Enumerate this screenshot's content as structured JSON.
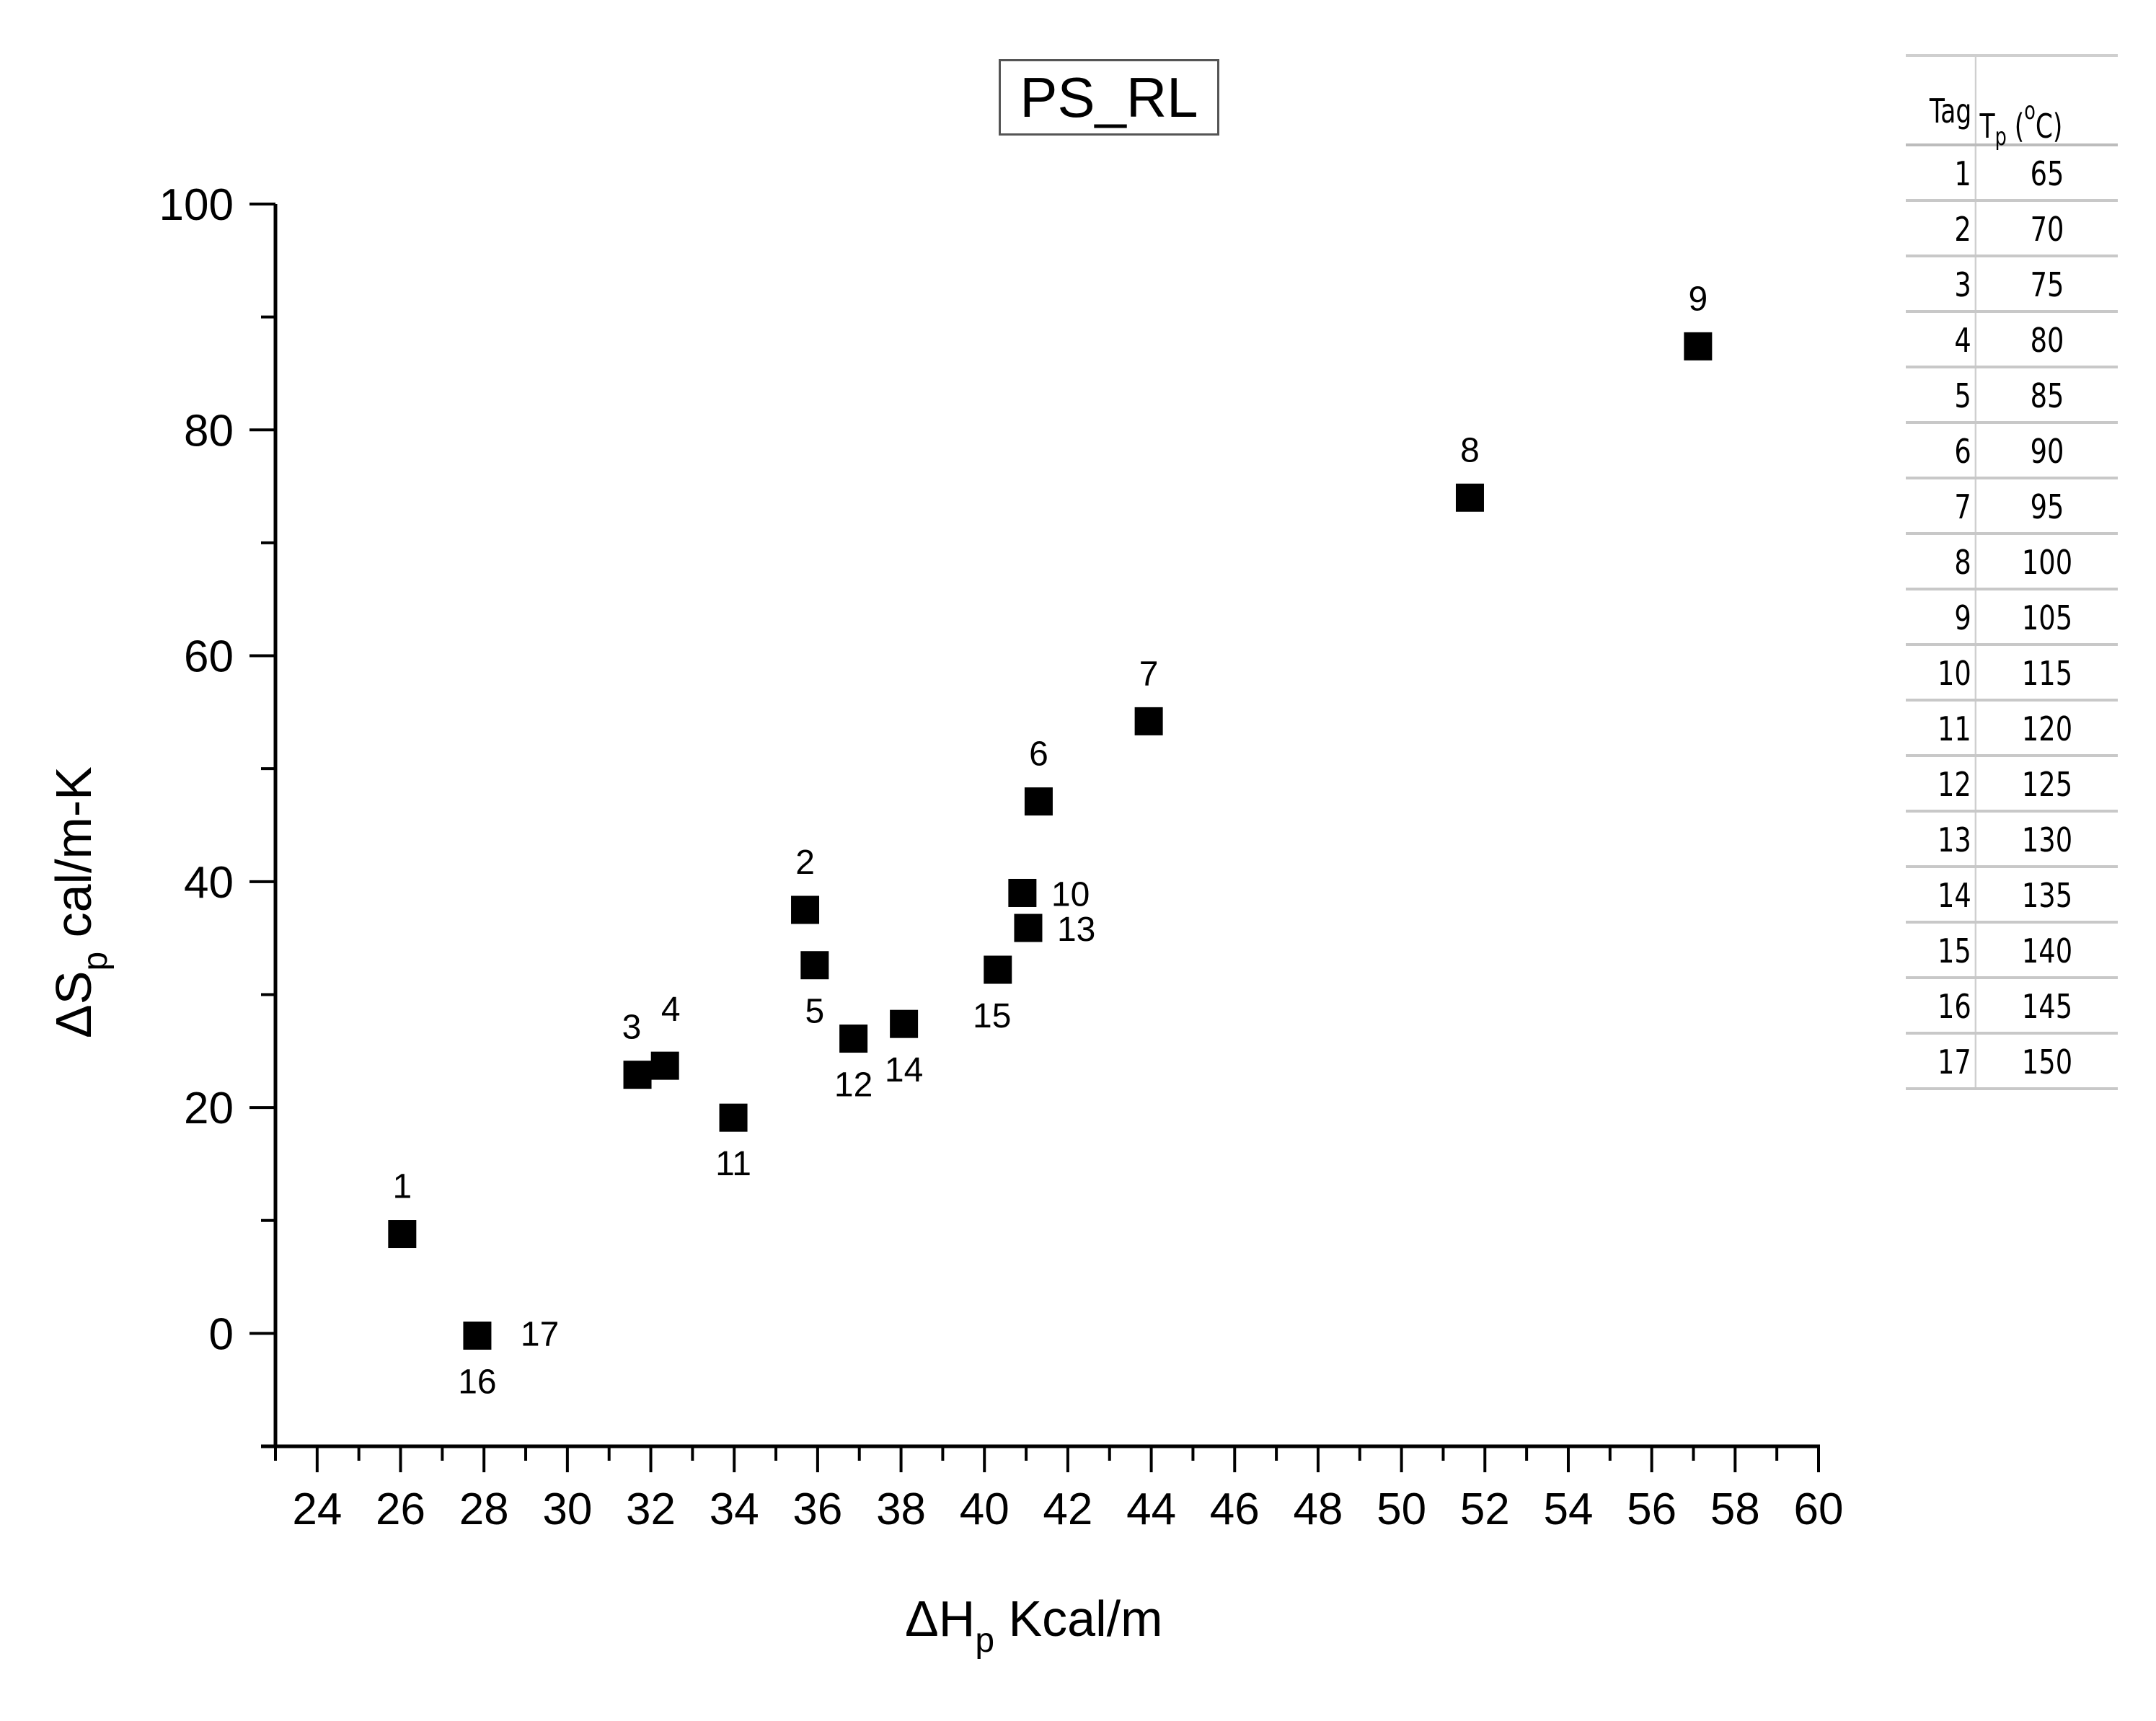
{
  "chart_data": {
    "type": "scatter",
    "title": "PS_RL",
    "xlabel": "ΔHp Kcal/m",
    "xlabel_main": "ΔH",
    "xlabel_sub": "p",
    "xlabel_unit": "Kcal/m",
    "ylabel": "ΔSp cal/m-K",
    "ylabel_main": "ΔS",
    "ylabel_sub": "p",
    "ylabel_unit": "cal/m-K",
    "xlim": [
      23,
      60
    ],
    "ylim": [
      -10,
      100
    ],
    "xticks": [
      24,
      26,
      28,
      30,
      32,
      34,
      36,
      38,
      40,
      42,
      44,
      46,
      48,
      50,
      52,
      54,
      56,
      58,
      60
    ],
    "yticks": [
      0,
      20,
      40,
      60,
      80,
      100
    ],
    "grid": false,
    "marker": "filled-square",
    "marker_color": "#000000",
    "points": [
      {
        "tag": "1",
        "x": 26.04,
        "y": 8.8,
        "label_pos": "above"
      },
      {
        "tag": "2",
        "x": 35.7,
        "y": 37.5,
        "label_pos": "above"
      },
      {
        "tag": "3",
        "x": 31.68,
        "y": 22.9,
        "label_pos": "above"
      },
      {
        "tag": "4",
        "x": 32.34,
        "y": 23.7,
        "label_pos": "above"
      },
      {
        "tag": "5",
        "x": 35.93,
        "y": 32.6,
        "label_pos": "below"
      },
      {
        "tag": "6",
        "x": 41.3,
        "y": 47.1,
        "label_pos": "above"
      },
      {
        "tag": "7",
        "x": 43.94,
        "y": 54.2,
        "label_pos": "above"
      },
      {
        "tag": "8",
        "x": 51.64,
        "y": 74.0,
        "label_pos": "above"
      },
      {
        "tag": "9",
        "x": 57.11,
        "y": 87.4,
        "label_pos": "above"
      },
      {
        "tag": "10",
        "x": 40.91,
        "y": 39.0,
        "label_pos": "right"
      },
      {
        "tag": "11",
        "x": 33.98,
        "y": 19.1,
        "label_pos": "below"
      },
      {
        "tag": "12",
        "x": 36.86,
        "y": 26.1,
        "label_pos": "below"
      },
      {
        "tag": "13",
        "x": 41.05,
        "y": 35.9,
        "label_pos": "right"
      },
      {
        "tag": "14",
        "x": 38.07,
        "y": 27.4,
        "label_pos": "below"
      },
      {
        "tag": "15",
        "x": 40.32,
        "y": 32.2,
        "label_pos": "below-left"
      },
      {
        "tag": "16",
        "x": 27.84,
        "y": -0.2,
        "label_pos": "below"
      },
      {
        "tag": "17",
        "x": 27.84,
        "y": -0.2,
        "label_pos": "right"
      }
    ]
  },
  "table": {
    "header_tag": "Tag",
    "header_tp_main": "T",
    "header_tp_sub": "p",
    "header_tp_open": " (",
    "header_tp_sup": "o",
    "header_tp_close": "C)",
    "rows": [
      {
        "tag": "1",
        "tp": "65"
      },
      {
        "tag": "2",
        "tp": "70"
      },
      {
        "tag": "3",
        "tp": "75"
      },
      {
        "tag": "4",
        "tp": "80"
      },
      {
        "tag": "5",
        "tp": "85"
      },
      {
        "tag": "6",
        "tp": "90"
      },
      {
        "tag": "7",
        "tp": "95"
      },
      {
        "tag": "8",
        "tp": "100"
      },
      {
        "tag": "9",
        "tp": "105"
      },
      {
        "tag": "10",
        "tp": "115"
      },
      {
        "tag": "11",
        "tp": "120"
      },
      {
        "tag": "12",
        "tp": "125"
      },
      {
        "tag": "13",
        "tp": "130"
      },
      {
        "tag": "14",
        "tp": "135"
      },
      {
        "tag": "15",
        "tp": "140"
      },
      {
        "tag": "16",
        "tp": "145"
      },
      {
        "tag": "17",
        "tp": "150"
      }
    ]
  }
}
